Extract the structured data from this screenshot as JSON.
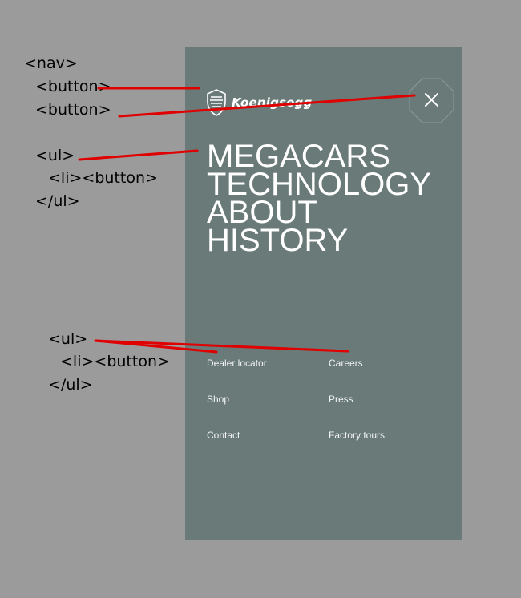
{
  "code_annotations": {
    "nav_open": "<nav>",
    "button_1": "<button>",
    "button_2": "<button>",
    "ul_open_1": "<ul>",
    "li_button_1": "<li><button>",
    "ul_close_1": "</ul>",
    "ul_open_2": "<ul>",
    "li_button_2": "<li><button>",
    "ul_close_2": "</ul>"
  },
  "brand": {
    "name": "Koenigsegg"
  },
  "close_button": {
    "icon": "close-icon"
  },
  "main_menu": [
    {
      "label": "MEGACARS"
    },
    {
      "label": "TECHNOLOGY"
    },
    {
      "label": "ABOUT"
    },
    {
      "label": "HISTORY"
    }
  ],
  "secondary_menu": [
    {
      "label": "Dealer locator"
    },
    {
      "label": "Careers"
    },
    {
      "label": "Shop"
    },
    {
      "label": "Press"
    },
    {
      "label": "Contact"
    },
    {
      "label": "Factory tours"
    }
  ],
  "colors": {
    "background": "#9b9b9b",
    "panel": "#697a78",
    "annotation_line": "#e00000",
    "text": "#ffffff"
  }
}
